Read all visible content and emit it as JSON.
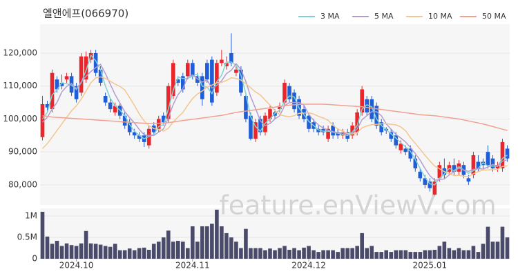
{
  "chart_data": [
    {
      "type": "candlestick",
      "title": "엘앤에프(066970)",
      "watermark": "feature.enViewV.com",
      "legend": "top-right",
      "grid": true,
      "up_color": "#e8262b",
      "down_color": "#1f5ed6",
      "ylim": [
        73900,
        128800
      ],
      "yticks": [
        {
          "value": 80000,
          "label": "80,000"
        },
        {
          "value": 90000,
          "label": "90,000"
        },
        {
          "value": 100000,
          "label": "100,000"
        },
        {
          "value": 110000,
          "label": "110,000"
        },
        {
          "value": 120000,
          "label": "120,000"
        }
      ],
      "open": [
        94500,
        104500,
        103000,
        112000,
        111000,
        112000,
        113000,
        110000,
        108000,
        112000,
        118000,
        120000,
        115000,
        107000,
        105000,
        102000,
        104000,
        101000,
        99000,
        96000,
        95000,
        95000,
        92000,
        98000,
        97000,
        101000,
        100000,
        107000,
        112000,
        113000,
        113000,
        117000,
        113000,
        113000,
        117000,
        118000,
        108000,
        117000,
        116000,
        120000,
        114000,
        115000,
        107000,
        101000,
        94000,
        100000,
        96000,
        100000,
        102000,
        103000,
        105000,
        110000,
        108000,
        106000,
        103000,
        101000,
        99000,
        97000,
        97000,
        94000,
        98000,
        96000,
        95000,
        96000,
        95000,
        96000,
        102000,
        106000,
        106000,
        104000,
        99000,
        97000,
        96000,
        95000,
        90500,
        91000,
        91000,
        88000,
        84000,
        82000,
        81000,
        77000,
        82000,
        85000,
        84000,
        86000,
        84000,
        86000,
        82000,
        83000,
        87000,
        87000,
        90000,
        88000,
        85000,
        85000,
        91000
      ],
      "high": [
        107000,
        105500,
        115000,
        113000,
        113500,
        114000,
        114000,
        111000,
        120000,
        120500,
        121000,
        121000,
        116000,
        108000,
        106000,
        105000,
        105000,
        102000,
        100000,
        97000,
        96000,
        96000,
        98000,
        99000,
        101000,
        102000,
        111000,
        118000,
        113000,
        114000,
        118000,
        118000,
        114000,
        114000,
        118000,
        119000,
        118000,
        121000,
        119000,
        126000,
        116000,
        116000,
        108000,
        102000,
        100000,
        101000,
        102000,
        104000,
        103000,
        105000,
        112000,
        111000,
        109000,
        107000,
        104000,
        102000,
        100000,
        98000,
        98000,
        98000,
        99000,
        97000,
        97000,
        97000,
        99000,
        103000,
        110000,
        107000,
        107000,
        105000,
        100000,
        97500,
        97000,
        96000,
        93500,
        92000,
        92000,
        89000,
        85000,
        83000,
        82000,
        82000,
        87000,
        88000,
        87000,
        88000,
        87500,
        87000,
        83000,
        90000,
        89000,
        88000,
        92000,
        89000,
        87000,
        94000,
        92000
      ],
      "low": [
        93500,
        102500,
        102000,
        108000,
        109000,
        111000,
        107000,
        105000,
        107000,
        111000,
        117000,
        113000,
        110000,
        104000,
        102000,
        101000,
        100000,
        97000,
        95000,
        94000,
        93000,
        91500,
        91000,
        95000,
        96000,
        98000,
        99000,
        106000,
        110000,
        108000,
        112000,
        112000,
        110000,
        104000,
        111000,
        104000,
        107000,
        116000,
        115000,
        116000,
        113000,
        107000,
        99000,
        93500,
        93000,
        95000,
        95000,
        99000,
        100000,
        102000,
        104000,
        105000,
        102000,
        100000,
        99000,
        96000,
        96000,
        95000,
        95000,
        93000,
        94000,
        94000,
        94000,
        93000,
        94000,
        95000,
        101000,
        101000,
        99000,
        97000,
        95000,
        95500,
        93000,
        91000,
        89500,
        89000,
        87000,
        84000,
        81000,
        79000,
        78000,
        76500,
        81000,
        82000,
        83000,
        83000,
        83000,
        82000,
        80000,
        82000,
        84000,
        85000,
        85000,
        84000,
        84000,
        84000,
        87000
      ],
      "close": [
        104500,
        103500,
        114000,
        109000,
        110000,
        113000,
        108000,
        106000,
        119000,
        119000,
        120000,
        114000,
        111000,
        105000,
        103000,
        104000,
        101000,
        98000,
        96000,
        95000,
        94000,
        93000,
        97000,
        96000,
        100000,
        99000,
        110000,
        117000,
        111000,
        109000,
        117000,
        113000,
        111000,
        106000,
        112000,
        105000,
        117000,
        118000,
        117000,
        117000,
        115000,
        108000,
        100000,
        94000,
        99000,
        96000,
        101000,
        103000,
        101000,
        104000,
        111000,
        106000,
        103000,
        101000,
        100000,
        97000,
        97000,
        96000,
        96000,
        97000,
        95000,
        95000,
        96000,
        94000,
        98000,
        102000,
        109000,
        102000,
        100000,
        98000,
        96000,
        96500,
        94000,
        92000,
        92500,
        90000,
        88000,
        85000,
        82000,
        80000,
        79000,
        81000,
        86000,
        83000,
        86000,
        84000,
        86500,
        83000,
        81000,
        89000,
        85000,
        86000,
        86000,
        85000,
        86000,
        93000,
        88000
      ],
      "series": [
        {
          "name": "3 MA",
          "color": "#7fd3d3",
          "values": [
            100000,
            102000,
            107300,
            108800,
            111000,
            110700,
            110300,
            109000,
            111000,
            114700,
            119300,
            117700,
            115000,
            110000,
            106300,
            104000,
            102700,
            101000,
            98300,
            96300,
            95000,
            94000,
            94700,
            95300,
            97700,
            98300,
            103000,
            108700,
            112700,
            112300,
            112300,
            113000,
            113700,
            110000,
            109700,
            107700,
            111300,
            113300,
            117300,
            117300,
            116300,
            113300,
            107700,
            100700,
            97700,
            96300,
            98700,
            100000,
            101700,
            102700,
            105300,
            107000,
            106700,
            103300,
            101300,
            99300,
            98000,
            96700,
            96300,
            96300,
            96000,
            95700,
            95300,
            95000,
            96000,
            98000,
            103000,
            104300,
            103700,
            100000,
            98000,
            96800,
            95500,
            94200,
            92800,
            91500,
            90200,
            87700,
            85000,
            82300,
            80300,
            80000,
            82000,
            83300,
            85000,
            84300,
            85500,
            84500,
            83500,
            84300,
            85000,
            86700,
            85700,
            85700,
            85700,
            88000,
            89000
          ]
        },
        {
          "name": "5 MA",
          "color": "#b39ccf",
          "values": [
            99000,
            100500,
            103000,
            105000,
            108200,
            109900,
            110800,
            109200,
            111200,
            113000,
            114400,
            115600,
            116600,
            113800,
            110600,
            107400,
            104800,
            102200,
            100400,
            98800,
            96800,
            95200,
            95000,
            95000,
            96000,
            97000,
            100400,
            104400,
            107400,
            109200,
            112800,
            113400,
            112200,
            111200,
            111800,
            109400,
            110200,
            111600,
            113800,
            114800,
            116800,
            115000,
            111400,
            106800,
            103200,
            99400,
            98000,
            98600,
            100000,
            101000,
            104000,
            105000,
            105000,
            105000,
            104200,
            101400,
            99600,
            98200,
            97200,
            96600,
            96200,
            95800,
            95800,
            95400,
            95600,
            97000,
            99800,
            101000,
            102200,
            102200,
            101000,
            98500,
            96900,
            95300,
            94200,
            93000,
            91300,
            89500,
            87500,
            85000,
            82800,
            81400,
            81600,
            81800,
            83000,
            84000,
            85100,
            84500,
            84100,
            84700,
            84900,
            84800,
            85400,
            86200,
            85600,
            87200,
            87600
          ]
        },
        {
          "name": "10 MA",
          "color": "#f4c58e",
          "values": [
            91000,
            92500,
            94500,
            96500,
            98500,
            100500,
            102500,
            104000,
            106000,
            108500,
            111000,
            112500,
            112800,
            112300,
            111500,
            110600,
            109900,
            108800,
            106500,
            104100,
            101500,
            99400,
            98000,
            97100,
            96800,
            96300,
            97200,
            99100,
            100600,
            102000,
            104200,
            106200,
            107600,
            108500,
            109700,
            110300,
            111000,
            111100,
            111700,
            112500,
            112300,
            111800,
            110700,
            109500,
            108200,
            107300,
            105700,
            104200,
            102600,
            101300,
            100900,
            100700,
            101000,
            101700,
            101800,
            101900,
            101500,
            100800,
            100300,
            99600,
            98100,
            97000,
            96300,
            95600,
            95400,
            95900,
            97300,
            97900,
            98300,
            98400,
            98500,
            98600,
            98400,
            98200,
            97600,
            96400,
            94300,
            92600,
            90800,
            89000,
            87300,
            85700,
            84900,
            84000,
            83400,
            82800,
            82900,
            82600,
            82500,
            83400,
            84000,
            84500,
            84500,
            84700,
            84700,
            85600,
            85800
          ]
        },
        {
          "name": "50 MA",
          "color": "#f2a08f",
          "values": [
            101000,
            100800,
            100600,
            100500,
            100400,
            100300,
            100200,
            100100,
            100000,
            99900,
            99800,
            99700,
            99600,
            99500,
            99400,
            99300,
            99200,
            99100,
            99000,
            98900,
            98800,
            98700,
            98600,
            98600,
            98700,
            98800,
            98900,
            99100,
            99300,
            99500,
            99700,
            99900,
            100100,
            100300,
            100500,
            100700,
            100900,
            101100,
            101400,
            101700,
            102000,
            102200,
            102400,
            102600,
            102800,
            103000,
            103200,
            103400,
            103600,
            103800,
            104000,
            104200,
            104300,
            104400,
            104500,
            104500,
            104500,
            104500,
            104500,
            104400,
            104300,
            104200,
            104100,
            104000,
            103900,
            103800,
            103700,
            103500,
            103300,
            103100,
            102900,
            102700,
            102500,
            102300,
            102100,
            101900,
            101700,
            101500,
            101300,
            101200,
            101100,
            101000,
            100800,
            100600,
            100400,
            100200,
            100000,
            99700,
            99400,
            99100,
            98800,
            98500,
            98100,
            97700,
            97300,
            96900,
            96500
          ]
        }
      ]
    },
    {
      "type": "bar",
      "color": "#4a4a6a",
      "ylim": [
        0,
        1180000
      ],
      "yticks": [
        0,
        {
          "value": 500000,
          "label": "0.5M"
        },
        {
          "value": 1000000,
          "label": "1M"
        }
      ],
      "categories": [
        null,
        null,
        null,
        null,
        null,
        null,
        null,
        "2024.10",
        null,
        null,
        null,
        null,
        null,
        null,
        null,
        null,
        null,
        null,
        null,
        null,
        null,
        null,
        null,
        null,
        null,
        null,
        null,
        null,
        null,
        null,
        null,
        "2024.11",
        null,
        null,
        null,
        null,
        null,
        null,
        null,
        null,
        null,
        null,
        null,
        null,
        null,
        null,
        null,
        null,
        null,
        null,
        null,
        null,
        null,
        null,
        null,
        "2024.12",
        null,
        null,
        null,
        null,
        null,
        null,
        null,
        null,
        null,
        null,
        null,
        null,
        null,
        null,
        null,
        null,
        null,
        null,
        null,
        null,
        null,
        null,
        null,
        null,
        "2025.01",
        null,
        null,
        null,
        null,
        null,
        null,
        null,
        null,
        null,
        null,
        null,
        null,
        null,
        null,
        null,
        null
      ],
      "values": [
        1100000,
        520000,
        350000,
        420000,
        300000,
        360000,
        320000,
        300000,
        360000,
        650000,
        360000,
        350000,
        330000,
        300000,
        280000,
        350000,
        200000,
        200000,
        240000,
        200000,
        250000,
        260000,
        210000,
        350000,
        400000,
        500000,
        660000,
        400000,
        420000,
        400000,
        250000,
        760000,
        400000,
        760000,
        760000,
        820000,
        1150000,
        760000,
        600000,
        500000,
        400000,
        250000,
        700000,
        250000,
        250000,
        250000,
        200000,
        240000,
        200000,
        250000,
        300000,
        210000,
        250000,
        200000,
        260000,
        300000,
        200000,
        160000,
        200000,
        200000,
        200000,
        160000,
        250000,
        250000,
        250000,
        300000,
        600000,
        250000,
        300000,
        160000,
        160000,
        200000,
        160000,
        200000,
        200000,
        200000,
        160000,
        160000,
        160000,
        200000,
        200000,
        210000,
        300000,
        400000,
        250000,
        200000,
        250000,
        200000,
        200000,
        300000,
        160000,
        350000,
        750000,
        400000,
        400000,
        750000,
        500000
      ]
    }
  ]
}
